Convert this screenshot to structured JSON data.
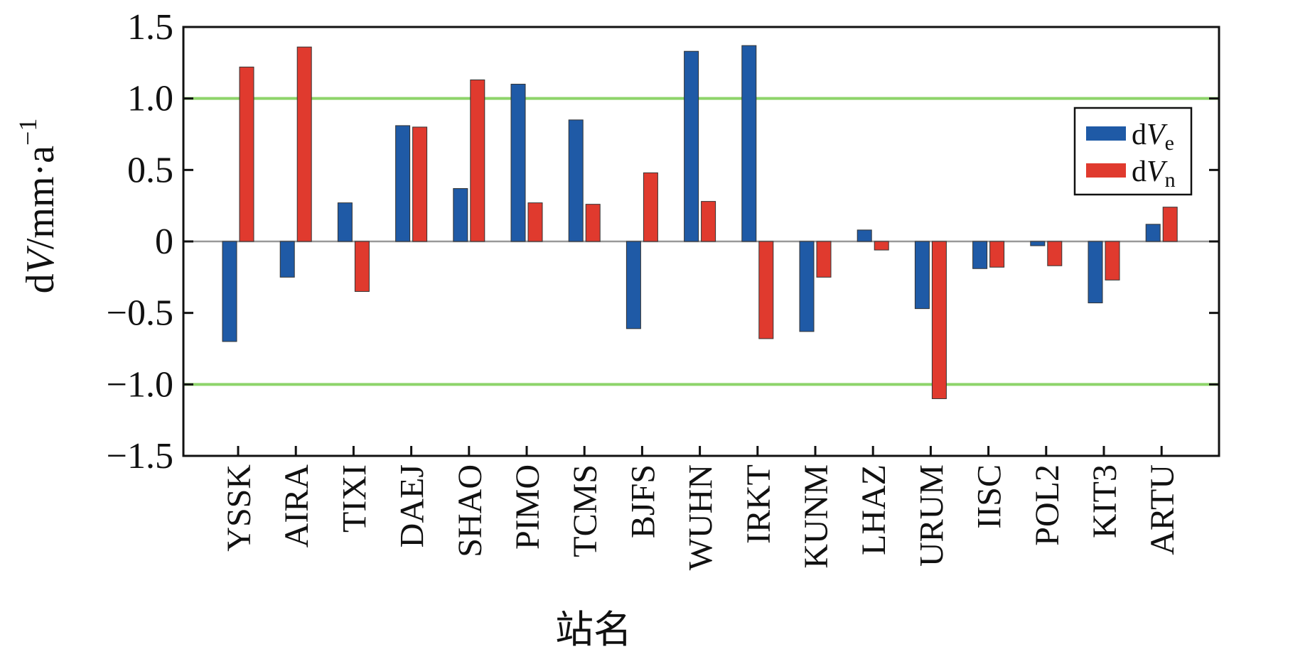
{
  "chart_data": {
    "type": "bar",
    "ylim": [
      -1.5,
      1.5
    ],
    "yticks": [
      1.5,
      1.0,
      0.5,
      0,
      -0.5,
      -1.0,
      -1.5
    ],
    "ytick_labels": [
      "1.5",
      "1.0",
      "0.5",
      "0",
      "−0.5",
      "−1.0",
      "−1.5"
    ],
    "reference_lines": [
      1.0,
      -1.0
    ],
    "grid": false,
    "legend_position": "top-right",
    "xlabel": "站名",
    "ylabel": {
      "prefix": "d",
      "italic": "V",
      "rest": "/mm·a",
      "sup": "−1"
    },
    "categories": [
      "YSSK",
      "AIRA",
      "TIXI",
      "DAEJ",
      "SHAO",
      "PIMO",
      "TCMS",
      "BJFS",
      "WUHN",
      "IRKT",
      "KUNM",
      "LHAZ",
      "URUM",
      "IISC",
      "POL2",
      "KIT3",
      "ARTU"
    ],
    "series": [
      {
        "name": "dVe",
        "legend": {
          "prefix": "d",
          "italic": "V",
          "sub": "e"
        },
        "color": "#1f5aa6",
        "values": [
          -0.7,
          -0.25,
          0.27,
          0.81,
          0.37,
          1.1,
          0.85,
          -0.61,
          1.33,
          1.37,
          -0.63,
          0.08,
          -0.47,
          -0.19,
          -0.03,
          -0.43,
          0.12
        ]
      },
      {
        "name": "dVn",
        "legend": {
          "prefix": "d",
          "italic": "V",
          "sub": "n"
        },
        "color": "#e03a2e",
        "values": [
          1.22,
          1.36,
          -0.35,
          0.8,
          1.13,
          0.27,
          0.26,
          0.48,
          0.28,
          -0.68,
          -0.25,
          -0.06,
          -1.1,
          -0.18,
          -0.17,
          -0.27,
          0.24
        ]
      }
    ]
  },
  "colors": {
    "reference_line": "#8ed46a",
    "zero_line": "#999999",
    "frame": "#111111"
  }
}
